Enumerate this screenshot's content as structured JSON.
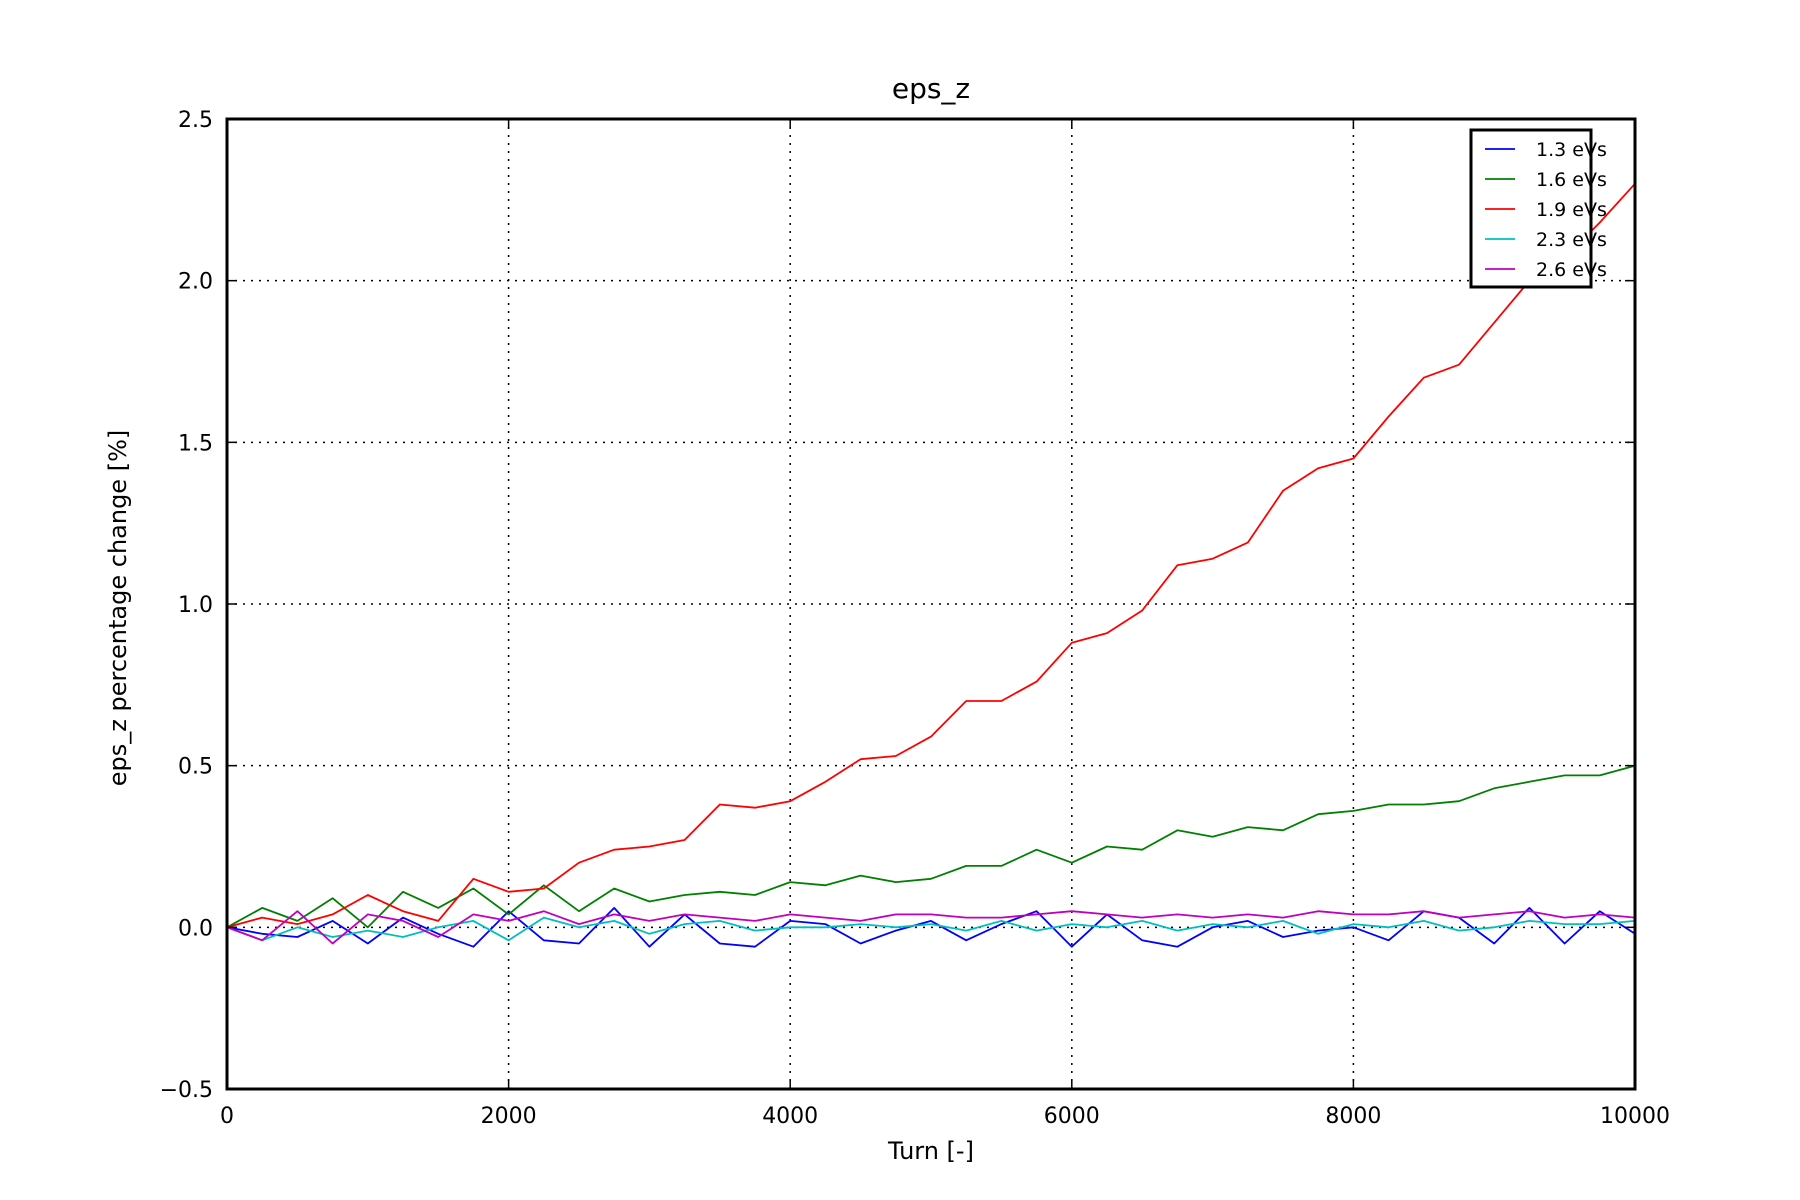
{
  "chart_data": {
    "type": "line",
    "title": "eps_z",
    "xlabel": "Turn [-]",
    "ylabel": "eps_z percentage change [%]",
    "xlim": [
      0,
      10000
    ],
    "ylim": [
      -0.5,
      2.5
    ],
    "xticks": [
      0,
      2000,
      4000,
      6000,
      8000,
      10000
    ],
    "xtick_labels": [
      "0",
      "2000",
      "4000",
      "6000",
      "8000",
      "10000"
    ],
    "yticks": [
      -0.5,
      0.0,
      0.5,
      1.0,
      1.5,
      2.0,
      2.5
    ],
    "ytick_labels": [
      "−0.5",
      "0.0",
      "0.5",
      "1.0",
      "1.5",
      "2.0",
      "2.5"
    ],
    "grid": true,
    "legend_position": "top-right",
    "x": [
      0,
      250,
      500,
      750,
      1000,
      1250,
      1500,
      1750,
      2000,
      2250,
      2500,
      2750,
      3000,
      3250,
      3500,
      3750,
      4000,
      4250,
      4500,
      4750,
      5000,
      5250,
      5500,
      5750,
      6000,
      6250,
      6500,
      6750,
      7000,
      7250,
      7500,
      7750,
      8000,
      8250,
      8500,
      8750,
      9000,
      9250,
      9500,
      9750,
      10000
    ],
    "series": [
      {
        "name": "1.3 eVs",
        "color": "#0000ff",
        "values": [
          0.0,
          -0.02,
          -0.03,
          0.02,
          -0.05,
          0.03,
          -0.02,
          -0.06,
          0.05,
          -0.04,
          -0.05,
          0.06,
          -0.06,
          0.04,
          -0.05,
          -0.06,
          0.02,
          0.01,
          -0.05,
          -0.01,
          0.02,
          -0.04,
          0.01,
          0.05,
          -0.06,
          0.04,
          -0.04,
          -0.06,
          0.0,
          0.02,
          -0.03,
          -0.01,
          0.0,
          -0.04,
          0.05,
          0.03,
          -0.05,
          0.06,
          -0.05,
          0.05,
          -0.02
        ]
      },
      {
        "name": "1.6 eVs",
        "color": "#008000",
        "values": [
          0.0,
          0.06,
          0.02,
          0.09,
          0.0,
          0.11,
          0.06,
          0.12,
          0.04,
          0.13,
          0.05,
          0.12,
          0.08,
          0.1,
          0.11,
          0.1,
          0.14,
          0.13,
          0.16,
          0.14,
          0.15,
          0.19,
          0.19,
          0.24,
          0.2,
          0.25,
          0.24,
          0.3,
          0.28,
          0.31,
          0.3,
          0.35,
          0.36,
          0.38,
          0.38,
          0.39,
          0.43,
          0.45,
          0.47,
          0.47,
          0.5
        ]
      },
      {
        "name": "1.9 eVs",
        "color": "#ff0000",
        "values": [
          0.0,
          0.03,
          0.01,
          0.04,
          0.1,
          0.05,
          0.02,
          0.15,
          0.11,
          0.12,
          0.2,
          0.24,
          0.25,
          0.27,
          0.38,
          0.37,
          0.39,
          0.45,
          0.52,
          0.53,
          0.59,
          0.7,
          0.7,
          0.76,
          0.88,
          0.91,
          0.98,
          1.12,
          1.14,
          1.19,
          1.35,
          1.42,
          1.45,
          1.58,
          1.7,
          1.74,
          1.87,
          2.0,
          2.07,
          2.18,
          2.3
        ]
      },
      {
        "name": "2.3 eVs",
        "color": "#00bfbf",
        "values": [
          0.0,
          -0.04,
          0.0,
          -0.03,
          -0.01,
          -0.03,
          0.0,
          0.02,
          -0.04,
          0.03,
          0.0,
          0.02,
          -0.02,
          0.01,
          0.02,
          -0.01,
          0.0,
          0.0,
          0.01,
          0.0,
          0.01,
          -0.01,
          0.02,
          -0.01,
          0.01,
          0.0,
          0.02,
          -0.01,
          0.01,
          0.0,
          0.02,
          -0.02,
          0.01,
          0.0,
          0.02,
          -0.01,
          0.0,
          0.02,
          0.01,
          0.01,
          0.02
        ]
      },
      {
        "name": "2.6 eVs",
        "color": "#bf00bf",
        "values": [
          0.0,
          -0.04,
          0.05,
          -0.05,
          0.04,
          0.02,
          -0.03,
          0.04,
          0.02,
          0.05,
          0.01,
          0.04,
          0.02,
          0.04,
          0.03,
          0.02,
          0.04,
          0.03,
          0.02,
          0.04,
          0.04,
          0.03,
          0.03,
          0.04,
          0.05,
          0.04,
          0.03,
          0.04,
          0.03,
          0.04,
          0.03,
          0.05,
          0.04,
          0.04,
          0.05,
          0.03,
          0.04,
          0.05,
          0.03,
          0.04,
          0.03
        ]
      }
    ]
  }
}
